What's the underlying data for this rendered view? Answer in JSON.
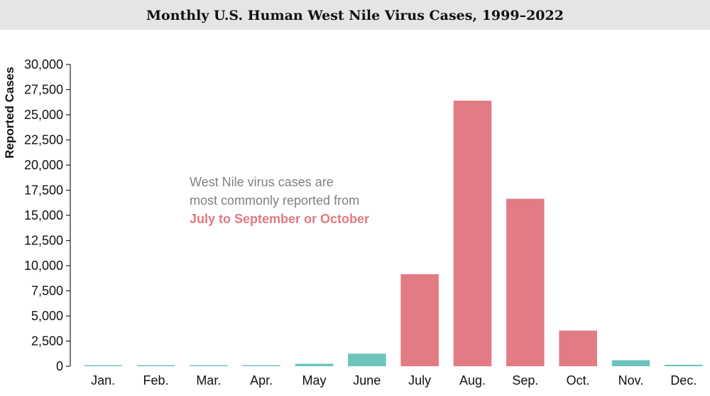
{
  "chart_data": {
    "type": "bar",
    "title": "Monthly U.S. Human West Nile Virus Cases, 1999–2022",
    "ylabel": "Reported Cases",
    "xlabel": "",
    "ylim": [
      0,
      30000
    ],
    "yticks": [
      "0",
      "2,500",
      "5,000",
      "7,500",
      "10,000",
      "12,500",
      "15,000",
      "17,500",
      "20,000",
      "22,500",
      "25,000",
      "27,500",
      "30,000"
    ],
    "ytick_values": [
      0,
      2500,
      5000,
      7500,
      10000,
      12500,
      15000,
      17500,
      20000,
      22500,
      25000,
      27500,
      30000
    ],
    "categories": [
      "Jan.",
      "Feb.",
      "Mar.",
      "Apr.",
      "May",
      "June",
      "July",
      "Aug.",
      "Sep.",
      "Oct.",
      "Nov.",
      "Dec."
    ],
    "values": [
      70,
      50,
      60,
      100,
      250,
      1250,
      9150,
      26400,
      16650,
      3550,
      600,
      150
    ],
    "highlight": [
      false,
      false,
      false,
      false,
      false,
      false,
      true,
      true,
      true,
      true,
      false,
      false
    ],
    "colors": {
      "normal": "#6cc4bd",
      "highlight": "#e27b83"
    },
    "grid": false,
    "annotation": {
      "line1": "West Nile virus cases are",
      "line2": "most commonly reported from",
      "highlight": "July to September or October"
    }
  }
}
